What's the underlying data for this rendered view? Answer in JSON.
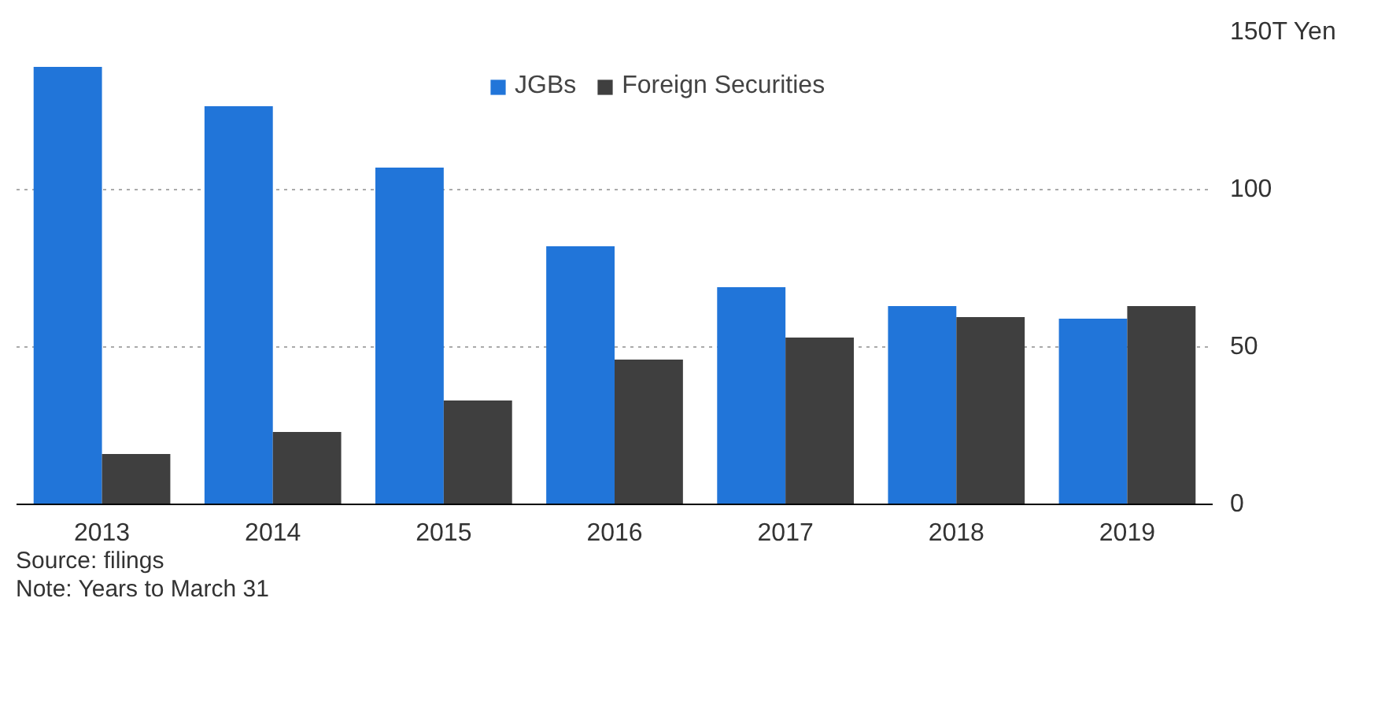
{
  "chart_data": {
    "type": "bar",
    "categories": [
      "2013",
      "2014",
      "2015",
      "2016",
      "2017",
      "2018",
      "2019"
    ],
    "series": [
      {
        "name": "JGBs",
        "color": "#2175d9",
        "values": [
          139,
          126.5,
          107,
          82,
          69,
          63,
          59
        ]
      },
      {
        "name": "Foreign Securities",
        "color": "#3f3f3f",
        "values": [
          16,
          23,
          33,
          46,
          53,
          59.5,
          63
        ]
      }
    ],
    "ylim": [
      0,
      150
    ],
    "yticks": [
      0,
      50,
      100,
      {
        "value": 150,
        "label": "150T Yen"
      }
    ],
    "grid": "y",
    "legend": "top left",
    "annotations": [
      "Source: filings",
      "Note: Years to March 31"
    ]
  }
}
